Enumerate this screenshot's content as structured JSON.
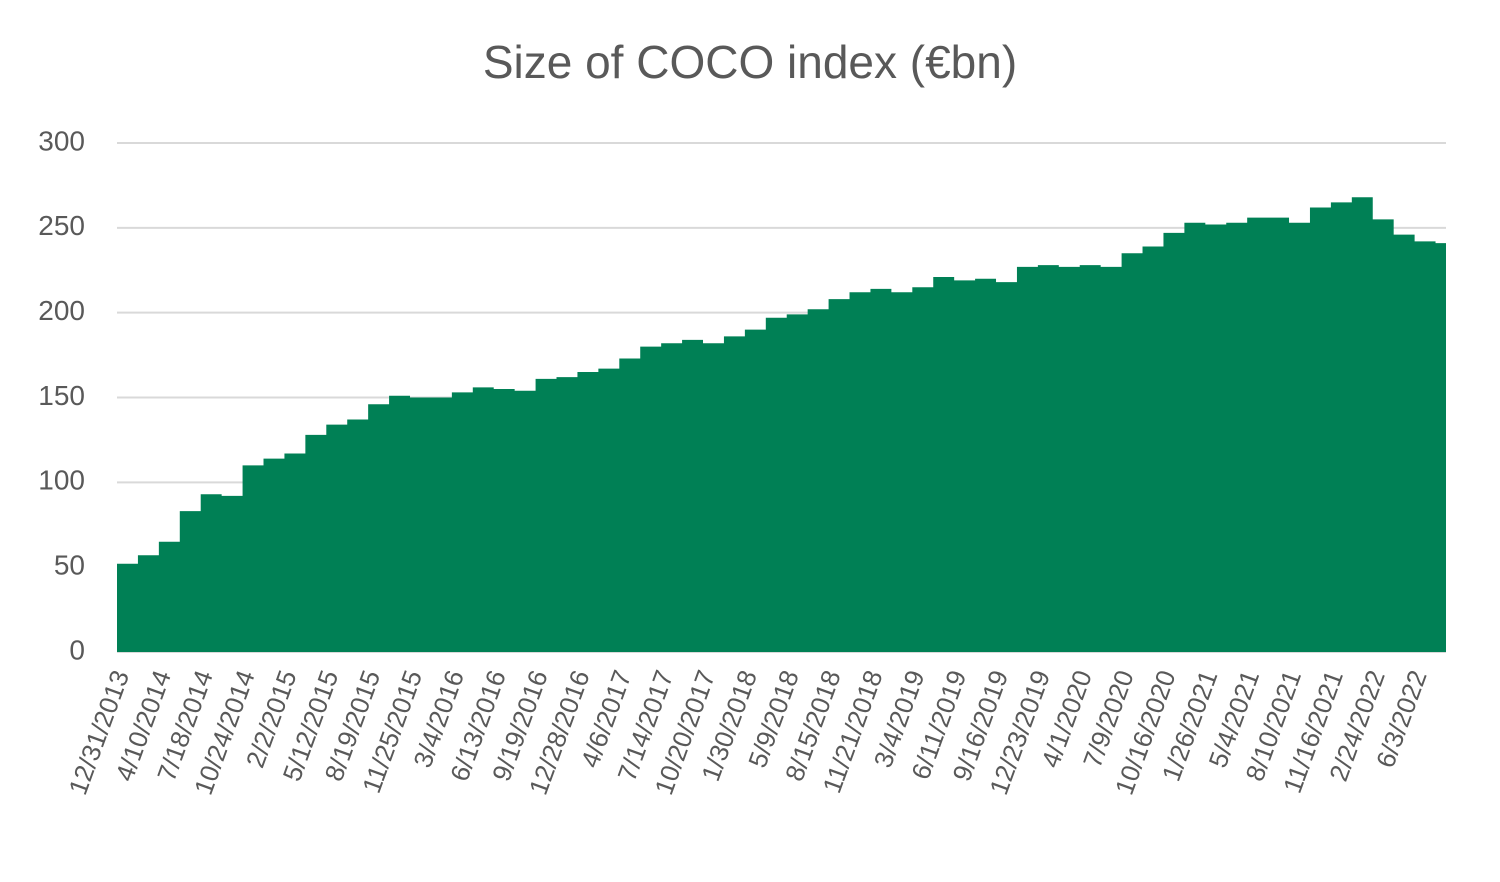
{
  "chart_data": {
    "type": "area",
    "title": "Size of COCO index (€bn)",
    "categories": [
      "12/31/2013",
      null,
      "4/10/2014",
      null,
      "7/18/2014",
      null,
      "10/24/2014",
      null,
      "2/2/2015",
      null,
      "5/12/2015",
      null,
      "8/19/2015",
      null,
      "11/25/2015",
      null,
      "3/4/2016",
      null,
      "6/13/2016",
      null,
      "9/19/2016",
      null,
      "12/28/2016",
      null,
      "4/6/2017",
      null,
      "7/14/2017",
      null,
      "10/20/2017",
      null,
      "1/30/2018",
      null,
      "5/9/2018",
      null,
      "8/15/2018",
      null,
      "11/21/2018",
      null,
      "3/4/2019",
      null,
      "6/11/2019",
      null,
      "9/16/2019",
      null,
      "12/23/2019",
      null,
      "4/1/2020",
      null,
      "7/9/2020",
      null,
      "10/16/2020",
      null,
      "1/26/2021",
      null,
      "5/4/2021",
      null,
      "8/10/2021",
      null,
      "11/16/2021",
      null,
      "2/24/2022",
      null,
      "6/3/2022",
      null
    ],
    "values": [
      52,
      57,
      65,
      83,
      93,
      92,
      110,
      114,
      117,
      128,
      134,
      137,
      146,
      151,
      150,
      150,
      153,
      156,
      155,
      154,
      161,
      162,
      165,
      167,
      173,
      180,
      182,
      184,
      182,
      186,
      190,
      197,
      199,
      202,
      208,
      212,
      214,
      212,
      215,
      221,
      219,
      220,
      218,
      227,
      228,
      227,
      228,
      227,
      235,
      239,
      247,
      253,
      252,
      253,
      256,
      256,
      253,
      262,
      265,
      268,
      255,
      246,
      242,
      241
    ],
    "color": "#008055",
    "ylim": [
      0,
      300
    ],
    "yticks": [
      0,
      50,
      100,
      150,
      200,
      250,
      300
    ],
    "grid": true
  }
}
